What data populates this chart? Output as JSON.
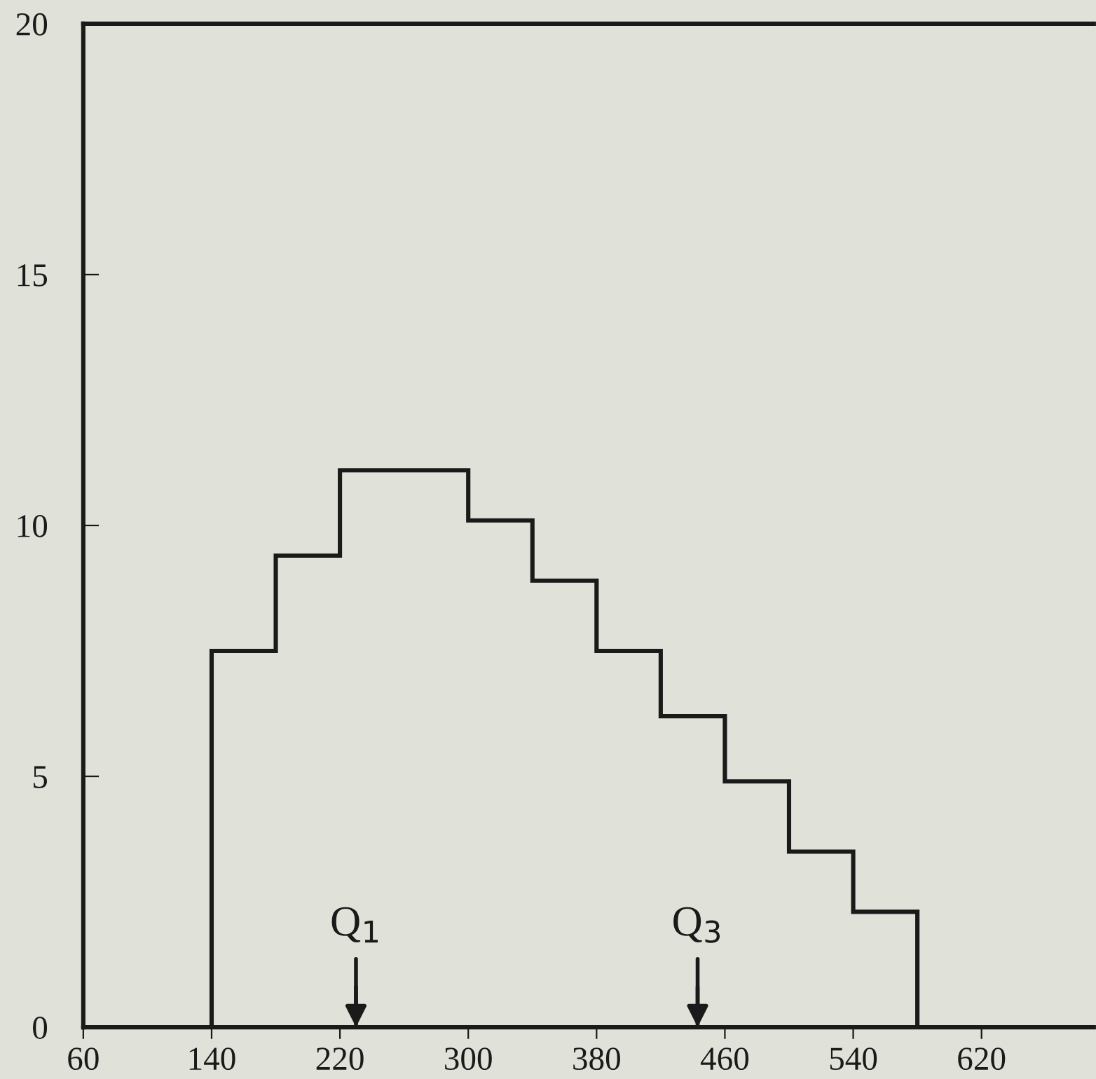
{
  "chart_data": {
    "type": "histogram",
    "bins": [
      140,
      180,
      220,
      300,
      340,
      380,
      420,
      460,
      500,
      540,
      580
    ],
    "values": [
      7.5,
      9.4,
      11.1,
      10.1,
      8.9,
      7.5,
      6.2,
      4.9,
      3.5,
      2.3
    ],
    "color": "#1a1a1a",
    "xlim": [
      60,
      690
    ],
    "xticks": [
      60,
      140,
      220,
      300,
      380,
      460,
      540,
      620
    ],
    "ylim": [
      0,
      20
    ],
    "yticks": [
      0,
      5,
      10,
      15,
      20
    ],
    "ref_lines": [
      {
        "axis": "x",
        "value": 230,
        "label": "Q$_{1}$"
      },
      {
        "axis": "x",
        "value": 443,
        "label": "Q$_{3}$"
      }
    ]
  }
}
